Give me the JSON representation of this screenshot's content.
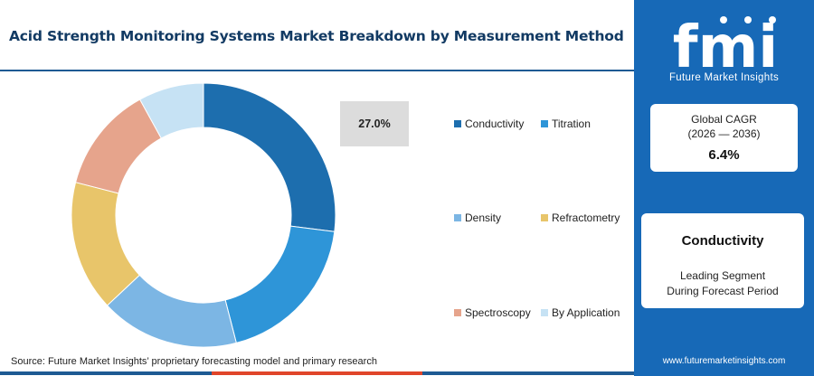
{
  "title": "Acid Strength Monitoring Systems Market Breakdown by Measurement Method",
  "callout": "27.0%",
  "source": "Source: Future Market Insights’ proprietary forecasting model and primary research",
  "colors": {
    "title": "#123a63",
    "panel": "#1769b7",
    "bottom_rule": [
      "#1e5a93",
      "#e0452a",
      "#1e5a93"
    ]
  },
  "brand": {
    "logo_text": "fmi",
    "subtitle": "Future Market Insights",
    "website": "www.futuremarketinsights.com"
  },
  "cagr": {
    "label": "Global CAGR",
    "period": "(2026 — 2036)",
    "value": "6.4%"
  },
  "segment": {
    "name": "Conductivity",
    "line1": "Leading Segment",
    "line2": "During Forecast Period"
  },
  "chart_data": {
    "type": "pie",
    "donut": true,
    "categories": [
      "Conductivity",
      "Titration",
      "Density",
      "Refractometry",
      "Spectroscopy",
      "By Application"
    ],
    "values": [
      27.0,
      19.0,
      17.0,
      16.0,
      13.0,
      8.0
    ],
    "colors": [
      "#1d6eae",
      "#2e95d8",
      "#7cb6e4",
      "#e8c56a",
      "#e6a48c",
      "#c6e2f4"
    ],
    "labels": [
      "27.0%"
    ],
    "legend_position": "right"
  }
}
